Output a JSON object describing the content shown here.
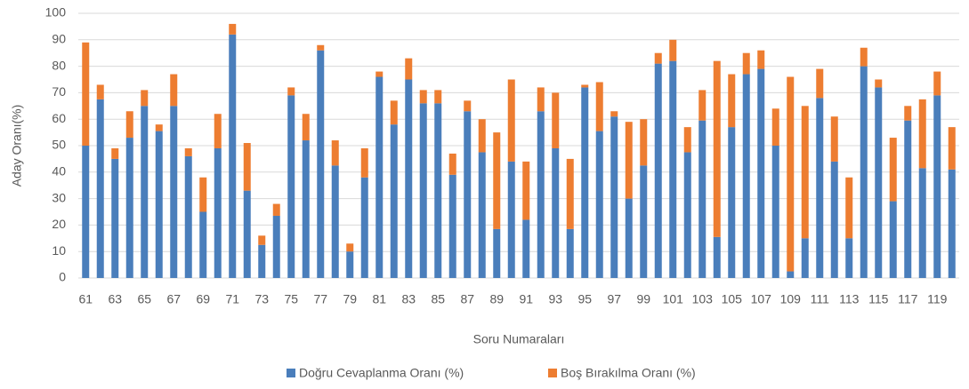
{
  "chart_data": {
    "type": "stacked_bar",
    "x_label": "Soru Numaraları",
    "y_label": "Aday Oranı(%)",
    "categories": [
      "61",
      null,
      "63",
      null,
      "65",
      null,
      "67",
      null,
      "69",
      null,
      "71",
      null,
      "73",
      null,
      "75",
      null,
      "77",
      null,
      "79",
      null,
      "81",
      null,
      "83",
      null,
      "85",
      null,
      "87",
      null,
      "89",
      null,
      "91",
      null,
      "93",
      null,
      "95",
      null,
      "97",
      null,
      "99",
      null,
      "101",
      null,
      "103",
      null,
      "105",
      null,
      "107",
      null,
      "109",
      null,
      "111",
      null,
      "113",
      null,
      "115",
      null,
      "117",
      null,
      "119",
      null
    ],
    "series": [
      {
        "name": "Doğru Cevaplanma Oranı (%)",
        "color": "#4a7ebb",
        "values": [
          50,
          67.5,
          45,
          53,
          65,
          55.5,
          65,
          46,
          25,
          49,
          92,
          33,
          12.5,
          23.5,
          69,
          52,
          86,
          42.5,
          10,
          38,
          76,
          58,
          75,
          66,
          66,
          39,
          63,
          47.5,
          18.5,
          44,
          22,
          63,
          49,
          18.5,
          72,
          55.5,
          61,
          30,
          42.5,
          81,
          82,
          47.5,
          59.5,
          15.5,
          57,
          77,
          79,
          50,
          2.5,
          15,
          68,
          44,
          15,
          80,
          72,
          29,
          59.5,
          41.5,
          69,
          41
        ]
      },
      {
        "name": "Boş Bırakılma Oranı (%)",
        "color": "#ed7d31",
        "values": [
          39,
          5.5,
          4,
          10,
          6,
          2.5,
          12,
          3,
          13,
          13,
          4,
          18,
          3.5,
          4.5,
          3,
          10,
          2,
          9.5,
          3,
          11,
          2,
          9,
          8,
          5,
          5,
          8,
          4,
          12.5,
          36.5,
          31,
          22,
          9,
          21,
          26.5,
          1,
          18.5,
          2,
          29,
          17.5,
          4,
          8,
          9.5,
          11.5,
          66.5,
          20,
          8,
          7,
          14,
          73.5,
          50,
          11,
          17,
          23,
          7,
          3,
          24,
          5.5,
          26,
          9,
          16
        ]
      }
    ],
    "ylim": [
      0,
      100
    ],
    "yticks": [
      0,
      10,
      20,
      30,
      40,
      50,
      60,
      70,
      80,
      90,
      100
    ],
    "grid": true,
    "legend": "bottom"
  }
}
